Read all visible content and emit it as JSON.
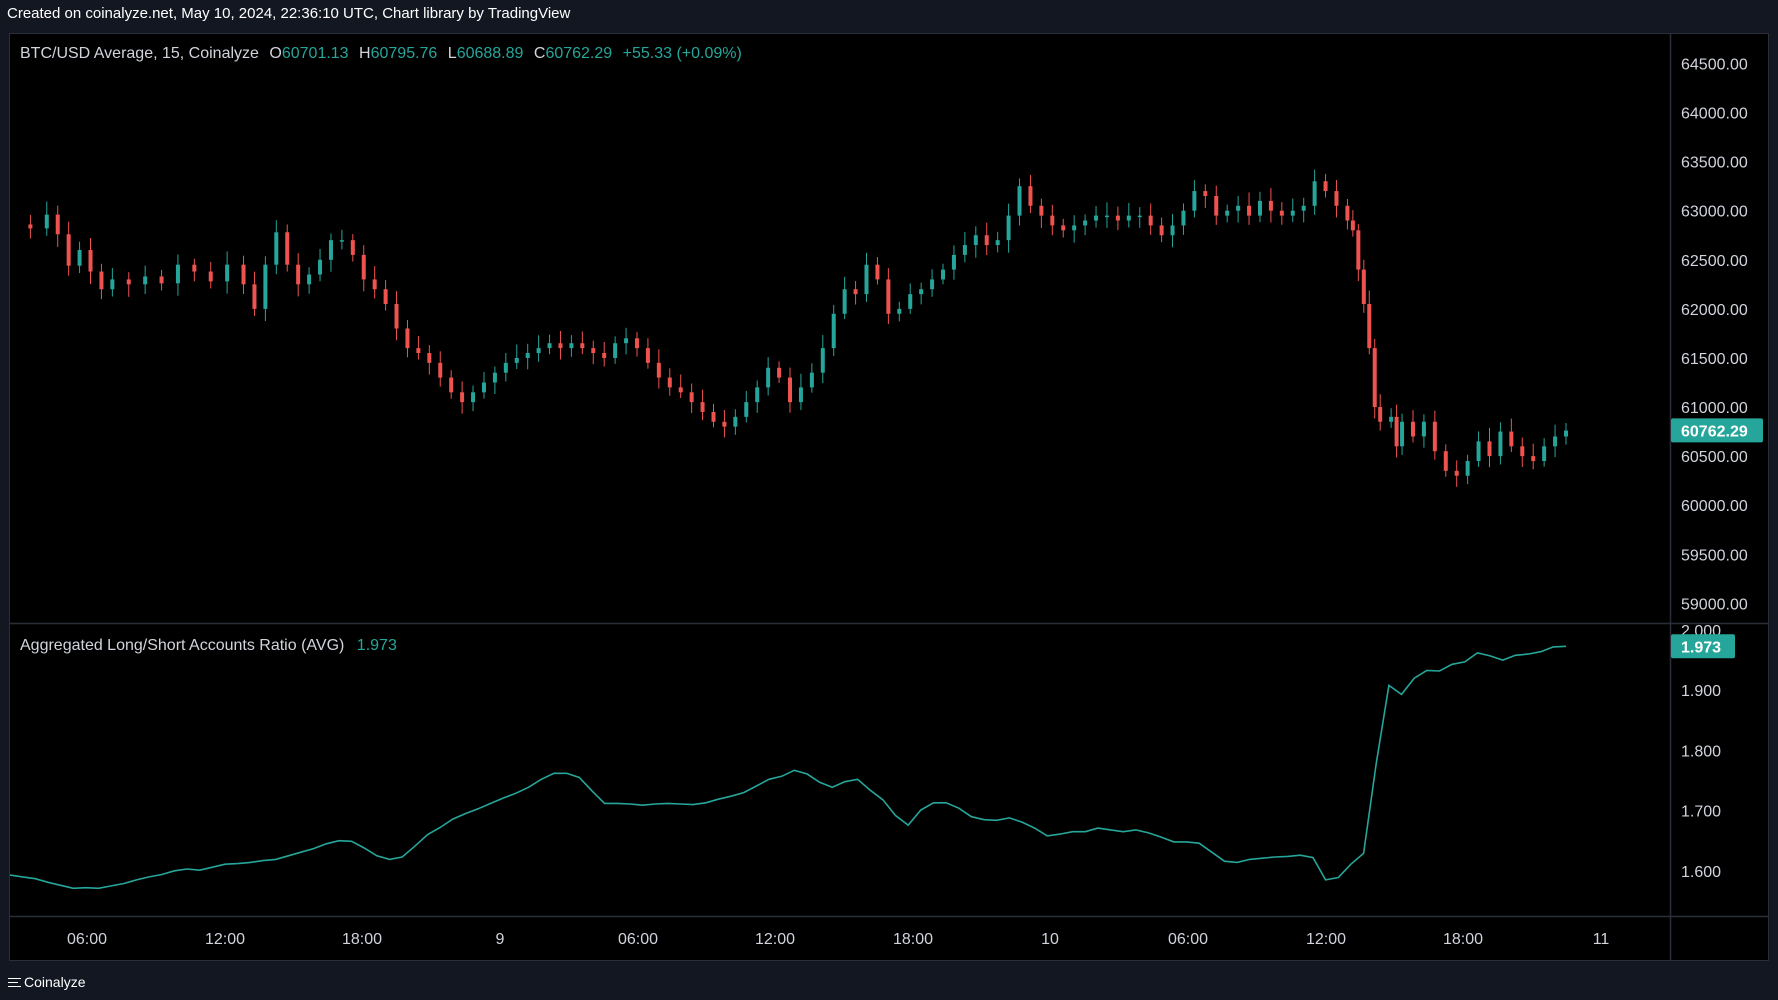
{
  "header": {
    "credit": "Created on coinalyze.net, May 10, 2024, 22:36:10 UTC, Chart library by TradingView"
  },
  "footer": {
    "brand": "Coinalyze"
  },
  "colors": {
    "up": "#26a69a",
    "down": "#ef5350",
    "line": "#26a69a",
    "badge": "#26a69a"
  },
  "chart_data": [
    {
      "type": "candlestick",
      "legend": {
        "symbol": "BTC/USD Average, 15, Coinalyze",
        "o_label": "O",
        "o": "60701.13",
        "h_label": "H",
        "h": "60795.76",
        "l_label": "L",
        "l": "60688.89",
        "c_label": "C",
        "c": "60762.29",
        "change": "+55.33 (+0.09%)"
      },
      "last_price_label": "60762.29",
      "y_ticks": [
        "59000.00",
        "59500.00",
        "60000.00",
        "60500.00",
        "61000.00",
        "61500.00",
        "62000.00",
        "62500.00",
        "63000.00",
        "63500.00",
        "64000.00",
        "64500.00"
      ],
      "ylim": [
        58800,
        64800
      ],
      "x_ticks": [
        "06:00",
        "12:00",
        "18:00",
        "9",
        "06:00",
        "12:00",
        "18:00",
        "10",
        "06:00",
        "12:00",
        "18:00",
        "11"
      ],
      "series": [
        {
          "t": 0,
          "c": 62860
        },
        {
          "t": 6,
          "c": 62820
        },
        {
          "t": 12,
          "c": 62960
        },
        {
          "t": 16,
          "c": 62760
        },
        {
          "t": 20,
          "c": 62440
        },
        {
          "t": 24,
          "c": 62600
        },
        {
          "t": 28,
          "c": 62380
        },
        {
          "t": 32,
          "c": 62200
        },
        {
          "t": 36,
          "c": 62300
        },
        {
          "t": 42,
          "c": 62250
        },
        {
          "t": 48,
          "c": 62330
        },
        {
          "t": 54,
          "c": 62260
        },
        {
          "t": 60,
          "c": 62450
        },
        {
          "t": 66,
          "c": 62380
        },
        {
          "t": 72,
          "c": 62280
        },
        {
          "t": 78,
          "c": 62450
        },
        {
          "t": 84,
          "c": 62250
        },
        {
          "t": 88,
          "c": 62000
        },
        {
          "t": 92,
          "c": 62450
        },
        {
          "t": 96,
          "c": 62780
        },
        {
          "t": 100,
          "c": 62450
        },
        {
          "t": 104,
          "c": 62250
        },
        {
          "t": 108,
          "c": 62350
        },
        {
          "t": 112,
          "c": 62500
        },
        {
          "t": 116,
          "c": 62700
        },
        {
          "t": 120,
          "c": 62700
        },
        {
          "t": 124,
          "c": 62550
        },
        {
          "t": 128,
          "c": 62300
        },
        {
          "t": 132,
          "c": 62200
        },
        {
          "t": 136,
          "c": 62050
        },
        {
          "t": 140,
          "c": 61800
        },
        {
          "t": 144,
          "c": 61600
        },
        {
          "t": 148,
          "c": 61550
        },
        {
          "t": 152,
          "c": 61450
        },
        {
          "t": 156,
          "c": 61300
        },
        {
          "t": 160,
          "c": 61150
        },
        {
          "t": 164,
          "c": 61050
        },
        {
          "t": 168,
          "c": 61150
        },
        {
          "t": 172,
          "c": 61250
        },
        {
          "t": 176,
          "c": 61350
        },
        {
          "t": 180,
          "c": 61450
        },
        {
          "t": 184,
          "c": 61500
        },
        {
          "t": 188,
          "c": 61550
        },
        {
          "t": 192,
          "c": 61600
        },
        {
          "t": 196,
          "c": 61650
        },
        {
          "t": 200,
          "c": 61600
        },
        {
          "t": 204,
          "c": 61650
        },
        {
          "t": 208,
          "c": 61600
        },
        {
          "t": 212,
          "c": 61550
        },
        {
          "t": 216,
          "c": 61500
        },
        {
          "t": 220,
          "c": 61650
        },
        {
          "t": 224,
          "c": 61700
        },
        {
          "t": 228,
          "c": 61600
        },
        {
          "t": 232,
          "c": 61450
        },
        {
          "t": 236,
          "c": 61300
        },
        {
          "t": 240,
          "c": 61200
        },
        {
          "t": 244,
          "c": 61150
        },
        {
          "t": 248,
          "c": 61050
        },
        {
          "t": 252,
          "c": 60950
        },
        {
          "t": 256,
          "c": 60850
        },
        {
          "t": 260,
          "c": 60800
        },
        {
          "t": 264,
          "c": 60900
        },
        {
          "t": 268,
          "c": 61050
        },
        {
          "t": 272,
          "c": 61200
        },
        {
          "t": 276,
          "c": 61400
        },
        {
          "t": 280,
          "c": 61300
        },
        {
          "t": 284,
          "c": 61050
        },
        {
          "t": 288,
          "c": 61200
        },
        {
          "t": 292,
          "c": 61350
        },
        {
          "t": 296,
          "c": 61600
        },
        {
          "t": 300,
          "c": 61950
        },
        {
          "t": 304,
          "c": 62200
        },
        {
          "t": 308,
          "c": 62150
        },
        {
          "t": 312,
          "c": 62450
        },
        {
          "t": 316,
          "c": 62300
        },
        {
          "t": 320,
          "c": 61950
        },
        {
          "t": 324,
          "c": 62000
        },
        {
          "t": 328,
          "c": 62150
        },
        {
          "t": 332,
          "c": 62200
        },
        {
          "t": 336,
          "c": 62300
        },
        {
          "t": 340,
          "c": 62400
        },
        {
          "t": 344,
          "c": 62550
        },
        {
          "t": 348,
          "c": 62650
        },
        {
          "t": 352,
          "c": 62750
        },
        {
          "t": 356,
          "c": 62650
        },
        {
          "t": 360,
          "c": 62700
        },
        {
          "t": 364,
          "c": 62950
        },
        {
          "t": 368,
          "c": 63250
        },
        {
          "t": 372,
          "c": 63050
        },
        {
          "t": 376,
          "c": 62950
        },
        {
          "t": 380,
          "c": 62850
        },
        {
          "t": 384,
          "c": 62800
        },
        {
          "t": 388,
          "c": 62850
        },
        {
          "t": 392,
          "c": 62900
        },
        {
          "t": 396,
          "c": 62950
        },
        {
          "t": 400,
          "c": 62950
        },
        {
          "t": 404,
          "c": 62900
        },
        {
          "t": 408,
          "c": 62950
        },
        {
          "t": 412,
          "c": 62950
        },
        {
          "t": 416,
          "c": 62850
        },
        {
          "t": 420,
          "c": 62750
        },
        {
          "t": 424,
          "c": 62850
        },
        {
          "t": 428,
          "c": 63000
        },
        {
          "t": 432,
          "c": 63200
        },
        {
          "t": 436,
          "c": 63150
        },
        {
          "t": 440,
          "c": 62950
        },
        {
          "t": 444,
          "c": 63000
        },
        {
          "t": 448,
          "c": 63050
        },
        {
          "t": 452,
          "c": 62950
        },
        {
          "t": 456,
          "c": 63100
        },
        {
          "t": 460,
          "c": 63000
        },
        {
          "t": 464,
          "c": 62950
        },
        {
          "t": 468,
          "c": 63000
        },
        {
          "t": 472,
          "c": 63050
        },
        {
          "t": 476,
          "c": 63300
        },
        {
          "t": 480,
          "c": 63200
        },
        {
          "t": 484,
          "c": 63050
        },
        {
          "t": 488,
          "c": 62900
        },
        {
          "t": 490,
          "c": 62800
        },
        {
          "t": 492,
          "c": 62400
        },
        {
          "t": 494,
          "c": 62050
        },
        {
          "t": 496,
          "c": 61600
        },
        {
          "t": 498,
          "c": 61000
        },
        {
          "t": 500,
          "c": 60850
        },
        {
          "t": 504,
          "c": 60900
        },
        {
          "t": 506,
          "c": 60600
        },
        {
          "t": 508,
          "c": 60850
        },
        {
          "t": 512,
          "c": 60700
        },
        {
          "t": 516,
          "c": 60850
        },
        {
          "t": 520,
          "c": 60550
        },
        {
          "t": 524,
          "c": 60350
        },
        {
          "t": 528,
          "c": 60300
        },
        {
          "t": 532,
          "c": 60450
        },
        {
          "t": 536,
          "c": 60650
        },
        {
          "t": 540,
          "c": 60500
        },
        {
          "t": 544,
          "c": 60750
        },
        {
          "t": 548,
          "c": 60600
        },
        {
          "t": 552,
          "c": 60500
        },
        {
          "t": 556,
          "c": 60450
        },
        {
          "t": 560,
          "c": 60600
        },
        {
          "t": 564,
          "c": 60700
        },
        {
          "t": 568,
          "c": 60760
        }
      ]
    },
    {
      "type": "line",
      "legend": {
        "title": "Aggregated Long/Short Accounts Ratio (AVG)",
        "value": "1.973"
      },
      "last_value_label": "1.973",
      "y_ticks": [
        "1.600",
        "1.700",
        "1.800",
        "1.900",
        "2.000"
      ],
      "ylim": [
        1.525,
        2.01
      ],
      "values": [
        1.593,
        1.59,
        1.587,
        1.581,
        1.576,
        1.571,
        1.572,
        1.571,
        1.575,
        1.579,
        1.585,
        1.59,
        1.594,
        1.6,
        1.603,
        1.601,
        1.606,
        1.611,
        1.612,
        1.614,
        1.617,
        1.619,
        1.625,
        1.631,
        1.637,
        1.645,
        1.65,
        1.649,
        1.638,
        1.625,
        1.619,
        1.623,
        1.641,
        1.66,
        1.672,
        1.686,
        1.695,
        1.703,
        1.712,
        1.721,
        1.729,
        1.739,
        1.752,
        1.762,
        1.762,
        1.755,
        1.733,
        1.712,
        1.712,
        1.711,
        1.709,
        1.711,
        1.712,
        1.711,
        1.71,
        1.713,
        1.719,
        1.724,
        1.73,
        1.741,
        1.752,
        1.757,
        1.767,
        1.761,
        1.747,
        1.739,
        1.748,
        1.752,
        1.734,
        1.718,
        1.692,
        1.676,
        1.701,
        1.713,
        1.713,
        1.704,
        1.69,
        1.685,
        1.684,
        1.688,
        1.681,
        1.671,
        1.658,
        1.661,
        1.665,
        1.665,
        1.671,
        1.668,
        1.665,
        1.668,
        1.663,
        1.656,
        1.648,
        1.648,
        1.646,
        1.631,
        1.616,
        1.614,
        1.619,
        1.621,
        1.623,
        1.624,
        1.626,
        1.622,
        1.585,
        1.589,
        1.611,
        1.629,
        1.778,
        1.908,
        1.893,
        1.92,
        1.933,
        1.932,
        1.943,
        1.947,
        1.962,
        1.957,
        1.95,
        1.958,
        1.96,
        1.964,
        1.972,
        1.973
      ]
    }
  ]
}
